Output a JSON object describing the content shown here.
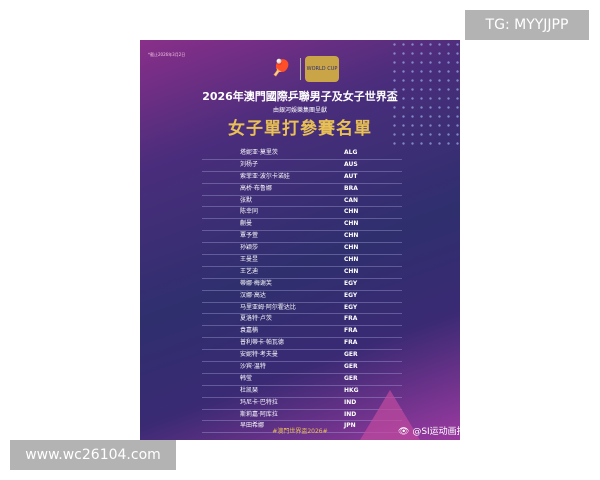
{
  "tag": "TG: MYYJJPP",
  "site": "www.wc26104.com",
  "poster": {
    "date_note": "*截止2026年3月2日",
    "title": "2026年澳門國際乒聯男子及女子世界盃",
    "subtitle": "由銀河娛樂集團呈獻",
    "heading": "女子單打參賽名單",
    "logo2_text": "WORLD CUP",
    "players": [
      {
        "name": "塔妮亚·莫里茨",
        "code": "ALG"
      },
      {
        "name": "刘杨子",
        "code": "AUS"
      },
      {
        "name": "索菲亚·波尔卡诺娃",
        "code": "AUT"
      },
      {
        "name": "高桥·布鲁娜",
        "code": "BRA"
      },
      {
        "name": "张默",
        "code": "CAN"
      },
      {
        "name": "陈幸同",
        "code": "CHN"
      },
      {
        "name": "蒯曼",
        "code": "CHN"
      },
      {
        "name": "覃予萱",
        "code": "CHN"
      },
      {
        "name": "孙颖莎",
        "code": "CHN"
      },
      {
        "name": "王曼昱",
        "code": "CHN"
      },
      {
        "name": "王艺迪",
        "code": "CHN"
      },
      {
        "name": "蒂娜·梅谢芙",
        "code": "EGY"
      },
      {
        "name": "汉娜·高达",
        "code": "EGY"
      },
      {
        "name": "马里亚姆·阿尔霍达比",
        "code": "EGY"
      },
      {
        "name": "夏洛特·卢茨",
        "code": "FRA"
      },
      {
        "name": "袁嘉楠",
        "code": "FRA"
      },
      {
        "name": "普利蒂卡·帕瓦德",
        "code": "FRA"
      },
      {
        "name": "安妮特·考夫曼",
        "code": "GER"
      },
      {
        "name": "沙宾·温特",
        "code": "GER"
      },
      {
        "name": "韩莹",
        "code": "GER"
      },
      {
        "name": "杜凯琹",
        "code": "HKG"
      },
      {
        "name": "玛尼卡·巴特拉",
        "code": "IND"
      },
      {
        "name": "斯莉嘉·阿库拉",
        "code": "IND"
      },
      {
        "name": "早田希娜",
        "code": "JPN"
      }
    ],
    "hashtag": "#澳門世界盃2026#",
    "watermark": "@SI运动画报"
  }
}
